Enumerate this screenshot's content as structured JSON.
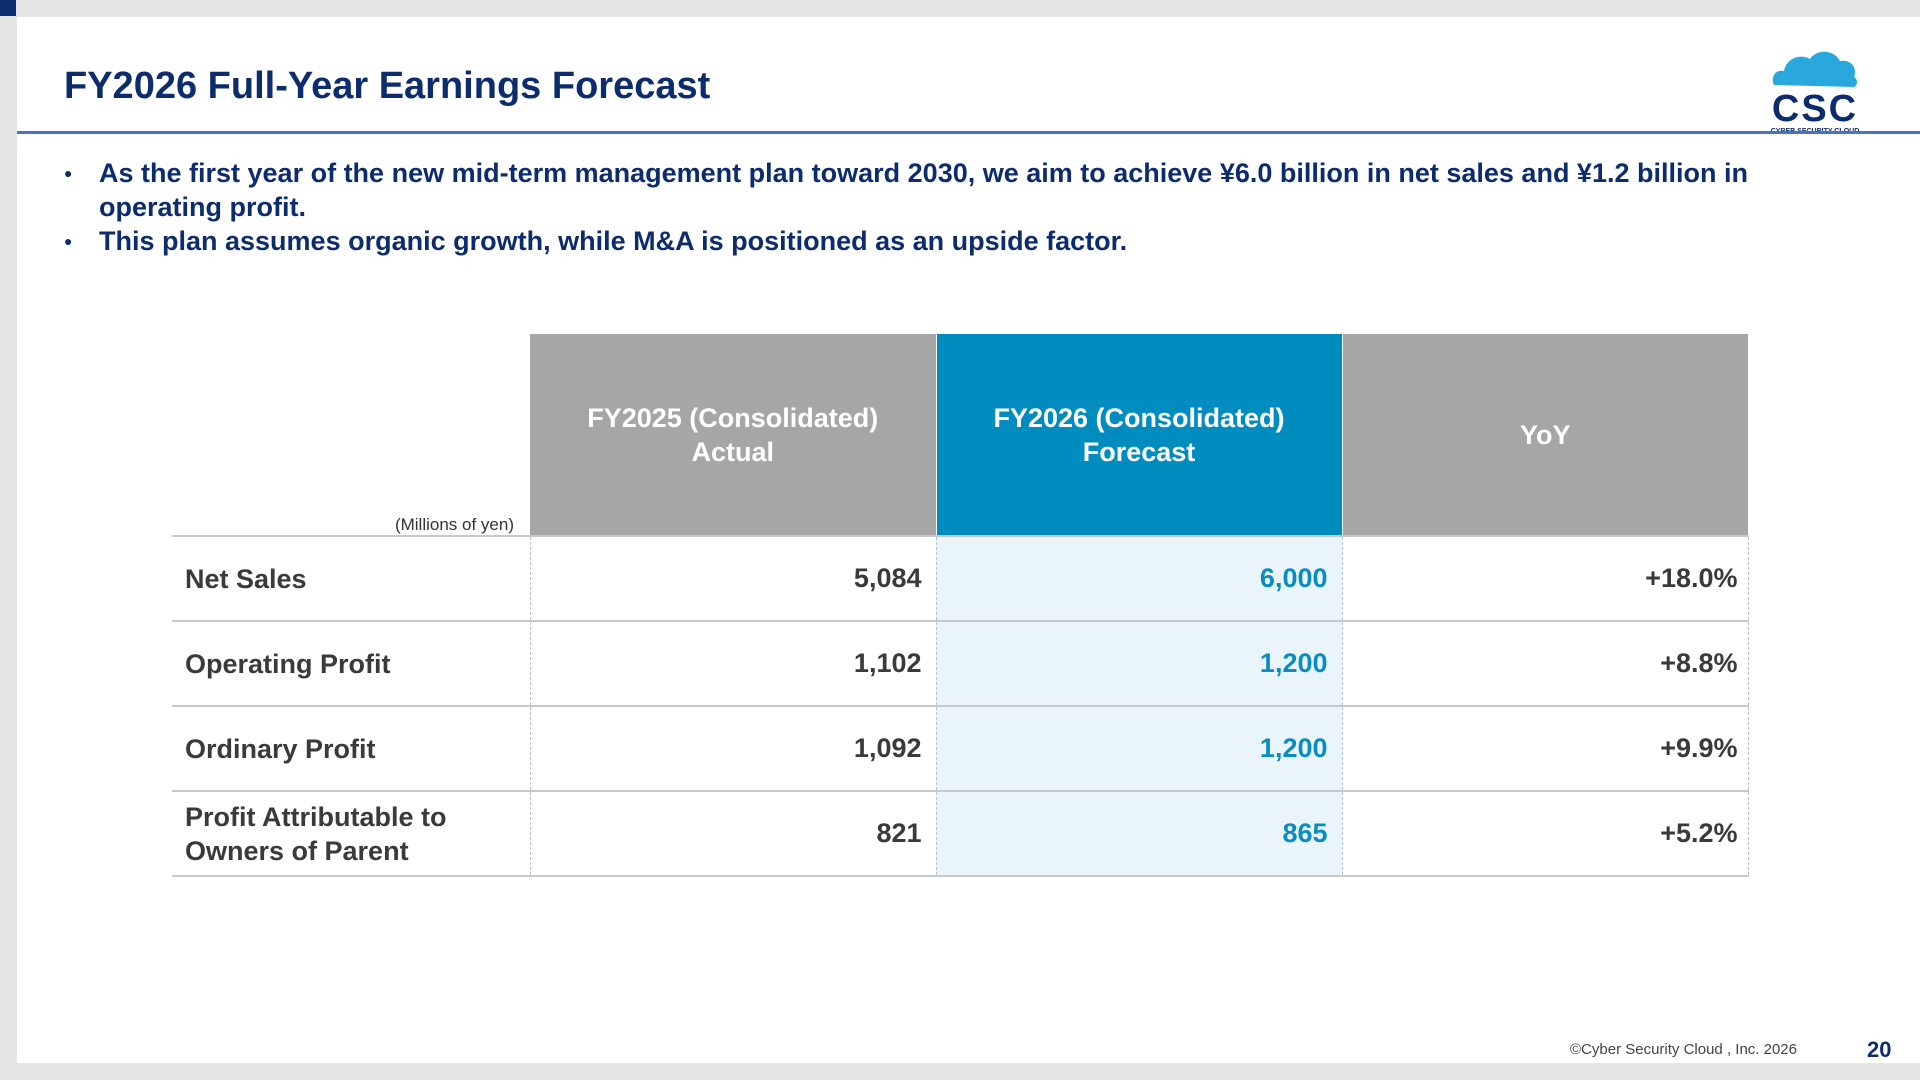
{
  "slide": {
    "title": "FY2026 Full-Year Earnings Forecast",
    "bullets": [
      "As the first year of the new mid-term management plan toward 2030, we aim to achieve ¥6.0 billion in net sales and ¥1.2 billion in operating profit.",
      "This plan assumes organic growth, while M&A is positioned as an upside factor."
    ],
    "logo": {
      "icon": "cloud-icon",
      "text": "CSC",
      "subtext": "CYBER SECURITY CLOUD",
      "color_cloud": "#2aa7dc",
      "color_text": "#0d2c6e"
    }
  },
  "table": {
    "unit": "(Millions of yen)",
    "headers": [
      {
        "line1": "FY2025 (Consolidated)",
        "line2": "Actual"
      },
      {
        "line1": "FY2026 (Consolidated)",
        "line2": "Forecast"
      },
      {
        "line1": "YoY",
        "line2": ""
      }
    ],
    "rows": [
      {
        "label_line1": "Net Sales",
        "label_line2": "",
        "actual": "5,084",
        "forecast": "6,000",
        "yoy": "+18.0%"
      },
      {
        "label_line1": "Operating Profit",
        "label_line2": "",
        "actual": "1,102",
        "forecast": "1,200",
        "yoy": "+8.8%"
      },
      {
        "label_line1": "Ordinary Profit",
        "label_line2": "",
        "actual": "1,092",
        "forecast": "1,200",
        "yoy": "+9.9%"
      },
      {
        "label_line1": "Profit Attributable to",
        "label_line2": "Owners of Parent",
        "actual": "821",
        "forecast": "865",
        "yoy": "+5.2%"
      }
    ]
  },
  "footer": {
    "copyright": "©Cyber Security Cloud , Inc. 2026",
    "page_number": "20"
  },
  "colors": {
    "title": "#0d2c6e",
    "header_gray": "#a6a6a6",
    "header_blue": "#008cbf",
    "forecast_text": "#0a8cbf",
    "forecast_bg": "#eaf5fb"
  }
}
